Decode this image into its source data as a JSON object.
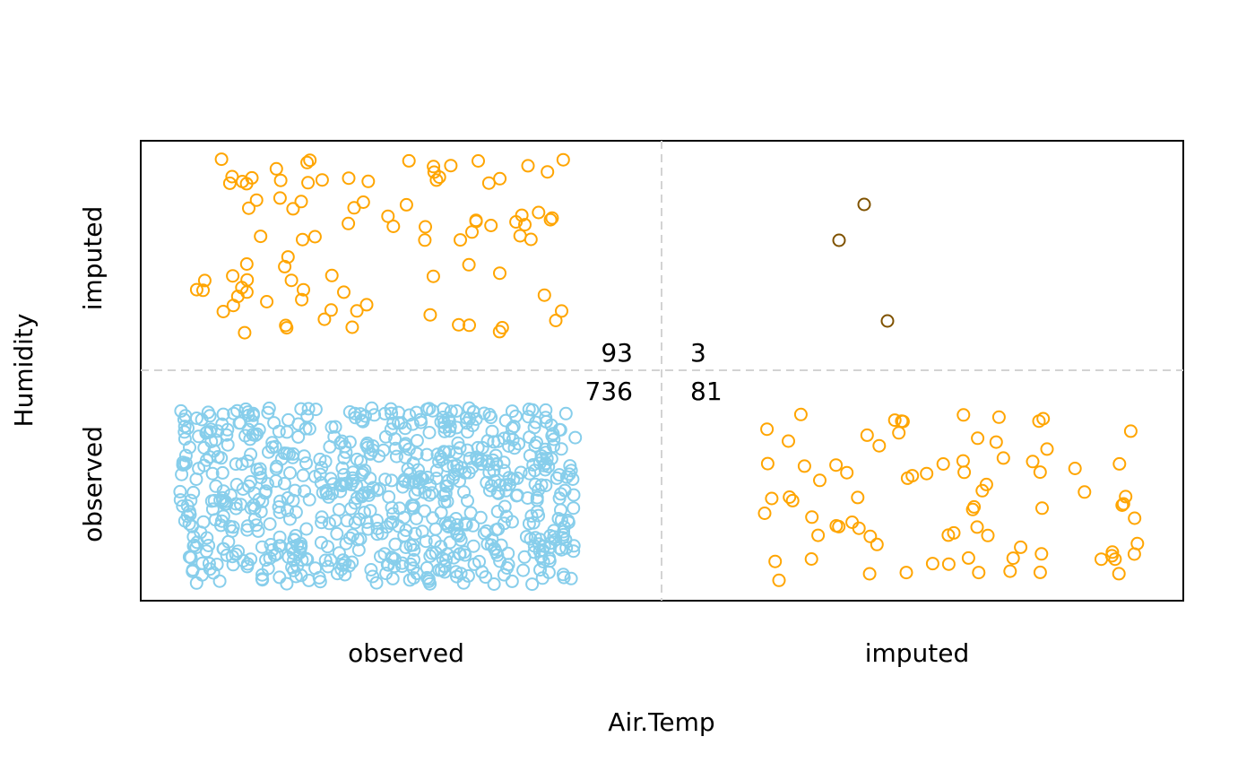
{
  "chart_data": {
    "type": "scatter",
    "title": "",
    "xlabel": "Air.Temp",
    "ylabel": "Humidity",
    "x_categories": [
      "observed",
      "imputed"
    ],
    "y_categories": [
      "observed",
      "imputed"
    ],
    "grid": "dashed divider between observed and imputed",
    "counts": {
      "observed_observed": "736",
      "imputed_observed": "93",
      "observed_imputed": "81",
      "imputed_imputed": "3"
    },
    "colors": {
      "observed": "#87CEEB",
      "imputed_one": "#FFA500",
      "imputed_both": "#7F5200",
      "divider": "#D3D3D3"
    },
    "series": [
      {
        "x_status": "observed",
        "y_status": "observed",
        "color": "#87CEEB",
        "n": 736,
        "points": "jittered"
      },
      {
        "x_status": "observed",
        "y_status": "imputed",
        "color": "#FFA500",
        "n": 93,
        "points": "jittered"
      },
      {
        "x_status": "imputed",
        "y_status": "observed",
        "color": "#FFA500",
        "n": 81,
        "points": "jittered"
      },
      {
        "x_status": "imputed",
        "y_status": "imputed",
        "color": "#7F5200",
        "n": 3,
        "points": "jittered"
      }
    ]
  }
}
